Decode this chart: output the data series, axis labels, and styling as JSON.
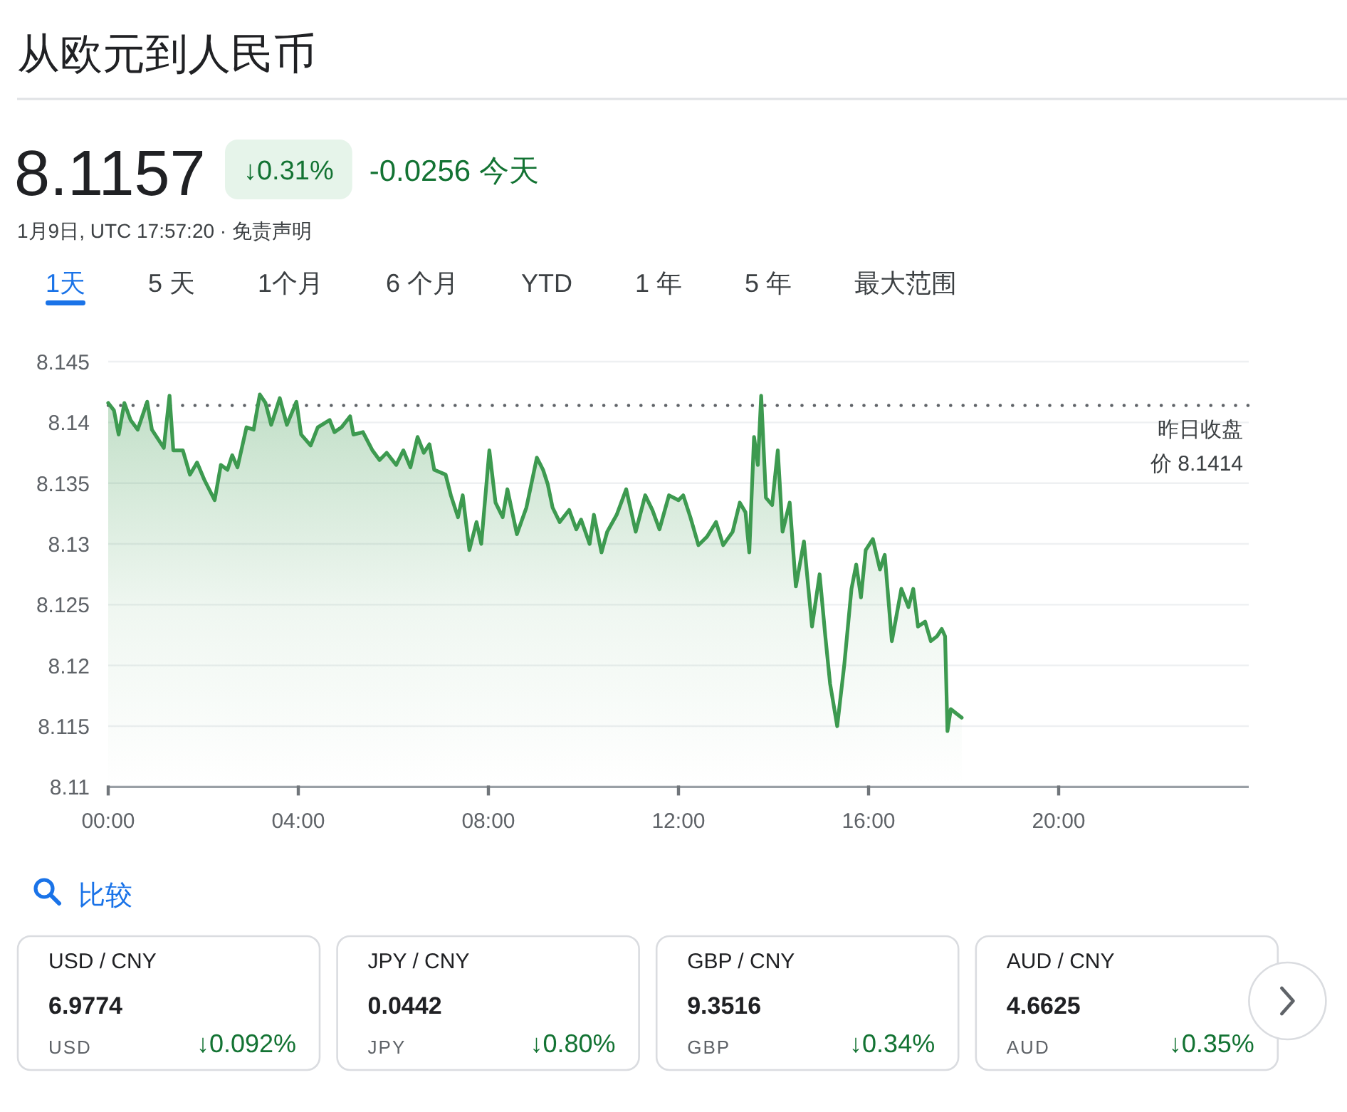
{
  "chart_data": [
    {
      "type": "area",
      "title": "从欧元到人民币",
      "subtitle": "1月9日, UTC 17:57:20 · 免责声明",
      "color": "#3d9a50",
      "x": [
        0,
        0.12,
        0.22,
        0.34,
        0.47,
        0.62,
        0.82,
        0.92,
        1.17,
        1.29,
        1.37,
        1.57,
        1.72,
        1.87,
        2.02,
        2.24,
        2.37,
        2.51,
        2.61,
        2.72,
        2.91,
        3.06,
        3.19,
        3.31,
        3.43,
        3.61,
        3.76,
        3.96,
        4.06,
        4.26,
        4.41,
        4.66,
        4.76,
        4.91,
        5.09,
        5.16,
        5.36,
        5.56,
        5.71,
        5.86,
        6.06,
        6.21,
        6.36,
        6.51,
        6.64,
        6.76,
        6.86,
        7.1,
        7.21,
        7.36,
        7.46,
        7.6,
        7.75,
        7.85,
        8.02,
        8.15,
        8.3,
        8.4,
        8.6,
        8.8,
        9.02,
        9.15,
        9.25,
        9.35,
        9.5,
        9.7,
        9.85,
        9.95,
        10.13,
        10.22,
        10.38,
        10.5,
        10.7,
        10.9,
        11.1,
        11.3,
        11.45,
        11.6,
        11.8,
        12.0,
        12.1,
        12.25,
        12.42,
        12.6,
        12.79,
        12.94,
        13.14,
        13.29,
        13.41,
        13.49,
        13.59,
        13.67,
        13.74,
        13.84,
        13.97,
        14.09,
        14.19,
        14.34,
        14.47,
        14.64,
        14.81,
        14.97,
        15.09,
        15.19,
        15.34,
        15.49,
        15.64,
        15.74,
        15.84,
        15.94,
        16.09,
        16.24,
        16.34,
        16.49,
        16.69,
        16.84,
        16.94,
        17.04,
        17.19,
        17.31,
        17.44,
        17.54,
        17.61,
        17.66,
        17.73,
        17.96
      ],
      "values": [
        8.1416,
        8.141,
        8.139,
        8.1416,
        8.1402,
        8.1394,
        8.1417,
        8.1394,
        8.1379,
        8.1422,
        8.1377,
        8.1377,
        8.1357,
        8.1367,
        8.1353,
        8.1336,
        8.1365,
        8.1361,
        8.1373,
        8.1363,
        8.1396,
        8.1394,
        8.1423,
        8.1416,
        8.1398,
        8.142,
        8.1398,
        8.1417,
        8.139,
        8.1381,
        8.1396,
        8.1402,
        8.1392,
        8.1396,
        8.1405,
        8.139,
        8.1392,
        8.1377,
        8.1369,
        8.1375,
        8.1365,
        8.1377,
        8.1363,
        8.1388,
        8.1375,
        8.1382,
        8.1361,
        8.1357,
        8.134,
        8.1322,
        8.134,
        8.1295,
        8.1318,
        8.13,
        8.1377,
        8.1334,
        8.1322,
        8.1345,
        8.1308,
        8.133,
        8.1371,
        8.1361,
        8.1349,
        8.133,
        8.1318,
        8.1328,
        8.1312,
        8.132,
        8.13,
        8.1324,
        8.1293,
        8.131,
        8.1324,
        8.1345,
        8.131,
        8.134,
        8.1328,
        8.1312,
        8.134,
        8.1336,
        8.134,
        8.1322,
        8.1299,
        8.1306,
        8.1318,
        8.1299,
        8.131,
        8.1334,
        8.1326,
        8.1293,
        8.1388,
        8.1365,
        8.1422,
        8.1338,
        8.1332,
        8.1377,
        8.131,
        8.1334,
        8.1265,
        8.1302,
        8.1232,
        8.1275,
        8.1224,
        8.1185,
        8.115,
        8.1201,
        8.1263,
        8.1283,
        8.1256,
        8.1295,
        8.1304,
        8.1279,
        8.1291,
        8.122,
        8.1263,
        8.1248,
        8.1263,
        8.1232,
        8.1236,
        8.122,
        8.1224,
        8.123,
        8.1224,
        8.1146,
        8.1164,
        8.1157
      ],
      "xlim": [
        0,
        24
      ],
      "xticks": [
        {
          "value": 0,
          "label": "00:00"
        },
        {
          "value": 4,
          "label": "04:00"
        },
        {
          "value": 8,
          "label": "08:00"
        },
        {
          "value": 12,
          "label": "12:00"
        },
        {
          "value": 16,
          "label": "16:00"
        },
        {
          "value": 20,
          "label": "20:00"
        }
      ],
      "ylim": [
        8.11,
        8.145
      ],
      "yticks": [
        8.11,
        8.115,
        8.12,
        8.125,
        8.13,
        8.135,
        8.14,
        8.145
      ],
      "grid": "y",
      "line_style": "solid",
      "ref_lines": [
        {
          "axis": "y",
          "value": 8.1414,
          "label": "昨日收盘价 8.1414",
          "line_style": "dotted"
        }
      ],
      "annotations": [
        "8.1157",
        "↓0.31%",
        "-0.0256 今天",
        "1天",
        "5 天",
        "1个月",
        "6 个月",
        "YTD",
        "1 年",
        "5 年",
        "最大范围",
        "比较"
      ]
    },
    {
      "type": "other",
      "annotations": [
        "USD / CNY",
        "6.9774",
        "USD",
        "↓0.092%",
        "JPY / CNY",
        "0.0442",
        "JPY",
        "↓0.80%",
        "GBP / CNY",
        "9.3516",
        "GBP",
        "↓0.34%",
        "AUD / CNY",
        "4.6625",
        "AUD",
        "↓0.35%"
      ]
    }
  ]
}
